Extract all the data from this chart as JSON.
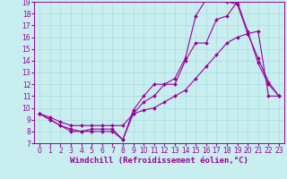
{
  "xlabel": "Windchill (Refroidissement éolien,°C)",
  "bg_color": "#c8eef0",
  "line_color": "#990099",
  "grid_color": "#aadddd",
  "xlim": [
    -0.5,
    23.5
  ],
  "ylim": [
    7,
    19
  ],
  "xticks": [
    0,
    1,
    2,
    3,
    4,
    5,
    6,
    7,
    8,
    9,
    10,
    11,
    12,
    13,
    14,
    15,
    16,
    17,
    18,
    19,
    20,
    21,
    22,
    23
  ],
  "yticks": [
    7,
    8,
    9,
    10,
    11,
    12,
    13,
    14,
    15,
    16,
    17,
    18,
    19
  ],
  "line1_x": [
    0,
    1,
    2,
    3,
    4,
    5,
    6,
    7,
    8,
    9,
    10,
    11,
    12,
    13,
    14,
    15,
    16,
    17,
    18,
    19,
    20,
    21,
    22,
    23
  ],
  "line1_y": [
    9.5,
    9.0,
    8.5,
    8.2,
    8.0,
    8.2,
    8.2,
    8.2,
    7.3,
    9.8,
    11.0,
    12.0,
    12.0,
    12.5,
    14.2,
    17.8,
    19.2,
    19.5,
    19.0,
    18.8,
    16.3,
    14.2,
    12.2,
    11.0
  ],
  "line2_x": [
    0,
    1,
    2,
    3,
    4,
    5,
    6,
    7,
    8,
    9,
    10,
    11,
    12,
    13,
    14,
    15,
    16,
    17,
    18,
    19,
    20,
    21,
    22,
    23
  ],
  "line2_y": [
    9.5,
    9.0,
    8.5,
    8.0,
    8.0,
    8.0,
    8.0,
    8.0,
    7.3,
    9.5,
    10.5,
    11.0,
    12.0,
    12.0,
    14.0,
    15.5,
    15.5,
    17.5,
    17.8,
    19.0,
    16.5,
    13.8,
    12.0,
    11.0
  ],
  "line3_x": [
    0,
    1,
    2,
    3,
    4,
    5,
    6,
    7,
    8,
    9,
    10,
    11,
    12,
    13,
    14,
    15,
    16,
    17,
    18,
    19,
    20,
    21,
    22,
    23
  ],
  "line3_y": [
    9.5,
    9.2,
    8.8,
    8.5,
    8.5,
    8.5,
    8.5,
    8.5,
    8.5,
    9.5,
    9.8,
    10.0,
    10.5,
    11.0,
    11.5,
    12.5,
    13.5,
    14.5,
    15.5,
    16.0,
    16.3,
    16.5,
    11.0,
    11.0
  ],
  "markersize": 2.0,
  "linewidth": 0.8,
  "tick_fontsize": 5.5,
  "xlabel_fontsize": 6.5
}
